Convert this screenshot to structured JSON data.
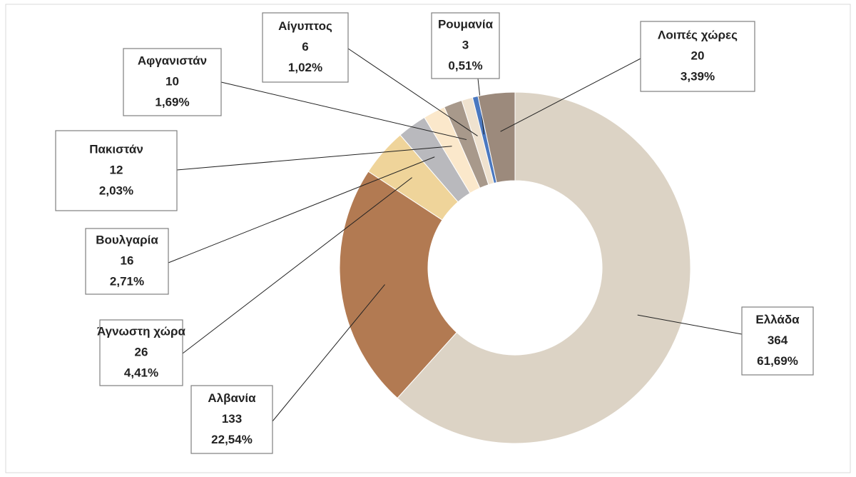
{
  "chart_data": {
    "type": "donut",
    "categories": [
      "Ελλάδα",
      "Αλβανία",
      "Άγνωστη χώρα",
      "Βουλγαρία",
      "Πακιστάν",
      "Αφγανιστάν",
      "Αίγυπτος",
      "Ρουμανία",
      "Λοιπές χώρες"
    ],
    "values": [
      364,
      133,
      26,
      16,
      12,
      10,
      6,
      3,
      20
    ],
    "percent_labels": [
      "61,69%",
      "22,54%",
      "4,41%",
      "2,71%",
      "2,03%",
      "1,69%",
      "1,02%",
      "0,51%",
      "3,39%"
    ],
    "colors": [
      "#dcd3c5",
      "#b27a52",
      "#efd49a",
      "#b9b9bd",
      "#fbe8cb",
      "#a8998b",
      "#efe2cf",
      "#4a78c0",
      "#9c8a7c"
    ]
  }
}
